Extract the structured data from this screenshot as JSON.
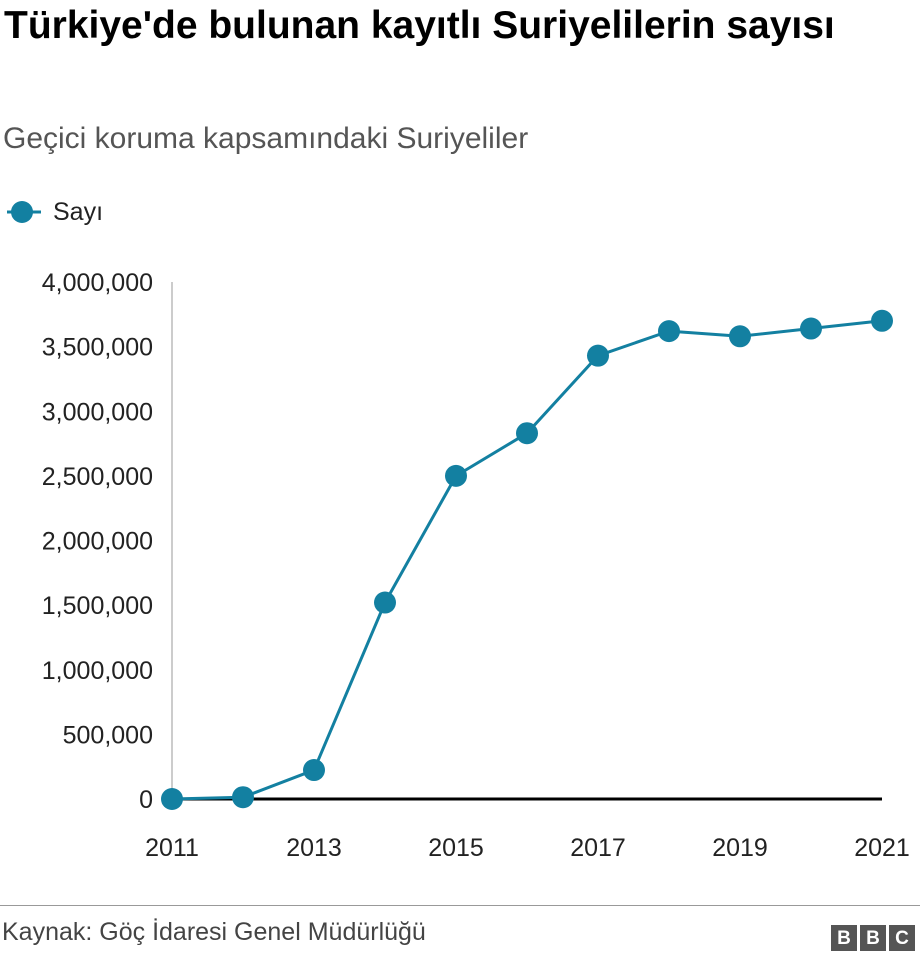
{
  "header": {
    "title": "Türkiye'de bulunan kayıtlı Suriyelilerin sayısı",
    "subtitle": "Geçici koruma kapsamındaki Suriyeliler"
  },
  "legend": {
    "label": "Sayı"
  },
  "colors": {
    "series": "#1380a1",
    "axis": "#000000",
    "gridline": "#cccccc"
  },
  "chart_data": {
    "type": "line",
    "title": "Türkiye'de bulunan kayıtlı Suriyelilerin sayısı",
    "subtitle": "Geçici koruma kapsamındaki Suriyeliler",
    "xlabel": "",
    "ylabel": "",
    "x": [
      2011,
      2012,
      2013,
      2014,
      2015,
      2016,
      2017,
      2018,
      2019,
      2020,
      2021
    ],
    "x_ticks": [
      "2011",
      "2013",
      "2015",
      "2017",
      "2019",
      "2021"
    ],
    "y_ticks": [
      "0",
      "500,000",
      "1,000,000",
      "1,500,000",
      "2,000,000",
      "2,500,000",
      "3,000,000",
      "3,500,000",
      "4,000,000"
    ],
    "xlim": [
      2011,
      2021
    ],
    "ylim": [
      0,
      4000000
    ],
    "series": [
      {
        "name": "Sayı",
        "values": [
          0,
          14000,
          224000,
          1520000,
          2500000,
          2830000,
          3430000,
          3620000,
          3580000,
          3640000,
          3700000
        ]
      }
    ],
    "legend_position": "top-left",
    "grid": false
  },
  "footer": {
    "source": "Kaynak: Göç İdaresi Genel Müdürlüğü",
    "logo_letters": [
      "B",
      "B",
      "C"
    ]
  }
}
